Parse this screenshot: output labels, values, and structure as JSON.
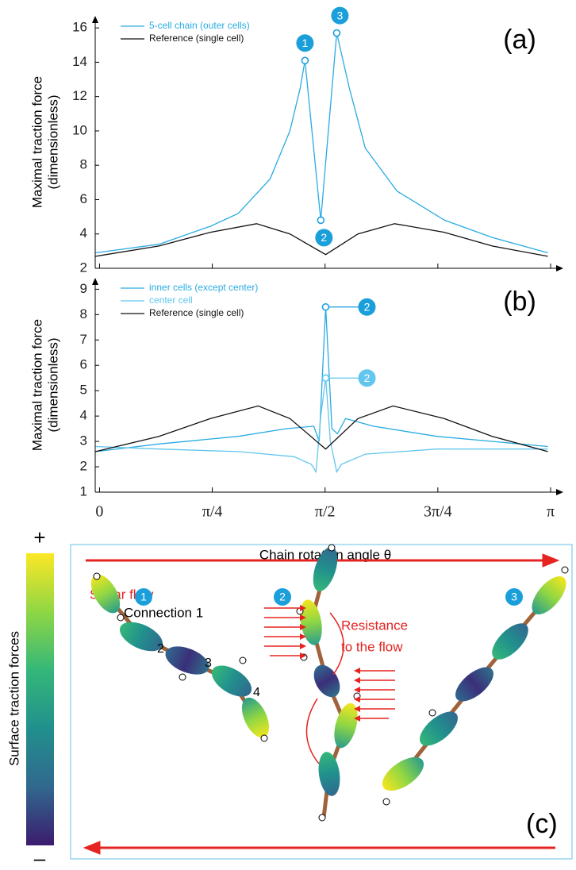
{
  "chart_data": [
    {
      "type": "line",
      "panel_label": "(a)",
      "ylabel": [
        "Maximal traction force",
        "(dimensionless)"
      ],
      "xlim": [
        -0.03,
        3.23
      ],
      "xticks": [
        0,
        0.7854,
        1.5708,
        2.3562,
        3.1416
      ],
      "xtick_labels": false,
      "ylim": [
        2,
        16.7
      ],
      "yticks": [
        2,
        4,
        6,
        8,
        10,
        12,
        14,
        16
      ],
      "legend": "upper left",
      "series": [
        {
          "name": "5-cell chain (outer cells)",
          "color": "#29abe2",
          "x": [
            -0.028,
            0.414,
            0.773,
            0.967,
            1.188,
            1.326,
            1.398,
            1.431,
            1.541,
            1.652,
            1.74,
            1.851,
            2.072,
            2.403,
            2.735,
            3.122
          ],
          "values": [
            2.9,
            3.4,
            4.45,
            5.2,
            7.2,
            10,
            12.5,
            14.1,
            4.8,
            15.7,
            12.5,
            9,
            6.5,
            4.8,
            3.8,
            2.9
          ]
        },
        {
          "name": "Reference (single cell)",
          "color": "#111111",
          "x": [
            -0.028,
            0.414,
            0.773,
            1.094,
            1.326,
            1.575,
            1.8,
            2.055,
            2.4,
            2.735,
            3.122
          ],
          "values": [
            2.7,
            3.3,
            4.1,
            4.6,
            4.0,
            2.8,
            4.0,
            4.6,
            4.1,
            3.3,
            2.7
          ]
        }
      ],
      "annotations": [
        {
          "label": "1",
          "x": 1.431,
          "y": 14.1,
          "color": "#1a9fdb"
        },
        {
          "label": "2",
          "x": 1.541,
          "y": 4.8,
          "color": "#1a9fdb"
        },
        {
          "label": "3",
          "x": 1.652,
          "y": 15.7,
          "color": "#1a9fdb"
        }
      ]
    },
    {
      "type": "line",
      "panel_label": "(b)",
      "ylabel": [
        "Maximal traction force",
        "(dimensionless)"
      ],
      "xlabel": "Chain rotation angle θ",
      "xlim": [
        -0.03,
        3.23
      ],
      "xticks": [
        0,
        {
          "value": 0.7854,
          "label": "π/4"
        },
        {
          "value": 1.5708,
          "label": "π/2"
        },
        {
          "value": 2.3562,
          "label": "3π/4"
        },
        {
          "value": 3.1416,
          "label": "π"
        }
      ],
      "ylim": [
        1,
        9.45
      ],
      "yticks": [
        1,
        2,
        3,
        4,
        5,
        6,
        7,
        8,
        9
      ],
      "legend": "upper left",
      "series": [
        {
          "name": "inner cells (except center)",
          "color": "#29abe2",
          "x": [
            -0.028,
            0.414,
            0.967,
            1.298,
            1.492,
            1.53,
            1.575,
            1.619,
            1.657,
            1.713,
            1.906,
            2.348,
            3.122
          ],
          "values": [
            2.6,
            2.9,
            3.2,
            3.5,
            3.6,
            3.0,
            8.3,
            3.5,
            3.3,
            3.9,
            3.6,
            3.2,
            2.8
          ]
        },
        {
          "name": "center cell",
          "color": "#62c6ee",
          "x": [
            -0.028,
            0.414,
            0.967,
            1.354,
            1.475,
            1.508,
            1.541,
            1.575,
            1.608,
            1.652,
            1.685,
            1.851,
            2.348,
            3.122
          ],
          "values": [
            2.8,
            2.7,
            2.6,
            2.4,
            2.1,
            1.8,
            4.0,
            5.5,
            3.0,
            1.8,
            2.1,
            2.5,
            2.7,
            2.7
          ]
        },
        {
          "name": "Reference (single cell)",
          "color": "#111111",
          "x": [
            -0.028,
            0.414,
            0.773,
            1.105,
            1.326,
            1.575,
            1.8,
            2.044,
            2.4,
            2.735,
            3.122
          ],
          "values": [
            2.6,
            3.2,
            3.9,
            4.4,
            3.9,
            2.7,
            3.9,
            4.4,
            3.9,
            3.2,
            2.6
          ]
        }
      ],
      "annotations": [
        {
          "label": "2",
          "x": 1.575,
          "y": 8.3,
          "color": "#1a9fdb"
        },
        {
          "label": "2",
          "x": 1.575,
          "y": 5.5,
          "color": "#62c6ee"
        }
      ]
    }
  ],
  "panel_c": {
    "colorbar_max": "+",
    "colorbar_min": "–",
    "colorbar_label": "Surface traction forces",
    "flow_label": "Shear flow",
    "badges": [
      "1",
      "2",
      "3"
    ],
    "connection_label": "Connection 1",
    "connection_numbers": [
      "2",
      "3",
      "4"
    ],
    "resistance_label": [
      "Resistance",
      "to the flow"
    ],
    "panel_label": "(c)"
  }
}
